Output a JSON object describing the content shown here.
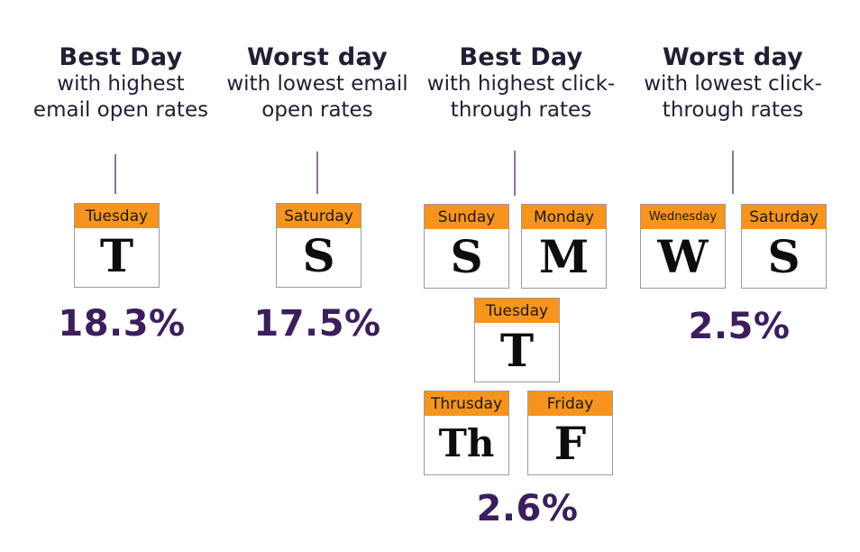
{
  "colors": {
    "orange": "#f7941d",
    "purple": "#3b1e5b",
    "heading": "#231e33",
    "card_border": "#9c9c9c",
    "connector": "#8a7898",
    "letter": "#0d0d0d"
  },
  "groups": [
    {
      "title": "Best Day",
      "subtitle": "with highest email open rates",
      "value_label": "18.3%",
      "days": [
        {
          "name": "Tuesday",
          "abbr": "T"
        }
      ]
    },
    {
      "title": "Worst day",
      "subtitle": "with lowest email open rates",
      "value_label": "17.5%",
      "days": [
        {
          "name": "Saturday",
          "abbr": "S"
        }
      ]
    },
    {
      "title": "Best Day",
      "subtitle": "with highest click-through rates",
      "value_label": "2.6%",
      "days": [
        {
          "name": "Sunday",
          "abbr": "S"
        },
        {
          "name": "Monday",
          "abbr": "M"
        },
        {
          "name": "Tuesday",
          "abbr": "T"
        },
        {
          "name": "Thrusday",
          "abbr": "Th"
        },
        {
          "name": "Friday",
          "abbr": "F"
        }
      ]
    },
    {
      "title": "Worst day",
      "subtitle": "with lowest click-through rates",
      "value_label": "2.5%",
      "days": [
        {
          "name": "Wednesday",
          "abbr": "W"
        },
        {
          "name": "Saturday",
          "abbr": "S"
        }
      ]
    }
  ],
  "chart_data": {
    "type": "table",
    "title": "Best and worst days for email open and click-through rates",
    "groups": [
      {
        "label": "Best Day with highest email open rates",
        "days": [
          "Tuesday"
        ],
        "value": 18.3,
        "unit": "%"
      },
      {
        "label": "Worst day with lowest email open rates",
        "days": [
          "Saturday"
        ],
        "value": 17.5,
        "unit": "%"
      },
      {
        "label": "Best Day with highest click-through rates",
        "days": [
          "Sunday",
          "Monday",
          "Tuesday",
          "Thrusday",
          "Friday"
        ],
        "value": 2.6,
        "unit": "%"
      },
      {
        "label": "Worst day with lowest click-through rates",
        "days": [
          "Wednesday",
          "Saturday"
        ],
        "value": 2.5,
        "unit": "%"
      }
    ]
  }
}
